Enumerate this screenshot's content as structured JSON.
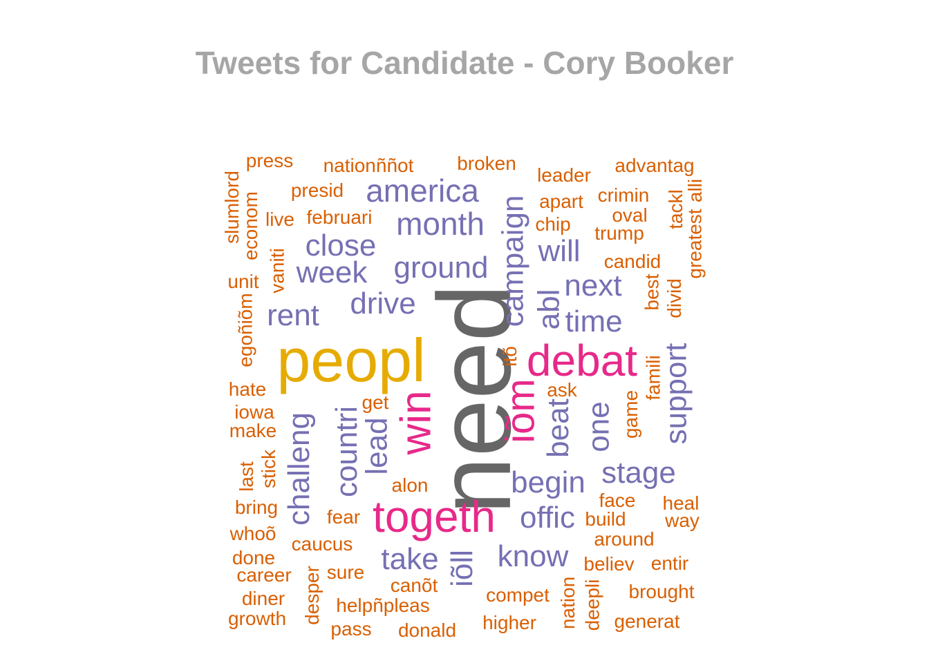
{
  "title": "Tweets for Candidate - Cory Booker",
  "colors": {
    "title": "#a6a6a6",
    "tier1": "#d95f02",
    "tier2": "#7570b3",
    "tier3": "#e7298a",
    "tier4": "#e6ab02",
    "tier5": "#666666"
  },
  "words": [
    {
      "text": "need",
      "color": "#666666"
    },
    {
      "text": "peopl",
      "color": "#e6ab02"
    },
    {
      "text": "togeth",
      "color": "#e7298a"
    },
    {
      "text": "debat",
      "color": "#e7298a"
    },
    {
      "text": "win",
      "color": "#e7298a"
    },
    {
      "text": "iõm",
      "color": "#e7298a"
    },
    {
      "text": "america",
      "color": "#7570b3"
    },
    {
      "text": "month",
      "color": "#7570b3"
    },
    {
      "text": "close",
      "color": "#7570b3"
    },
    {
      "text": "week",
      "color": "#7570b3"
    },
    {
      "text": "ground",
      "color": "#7570b3"
    },
    {
      "text": "drive",
      "color": "#7570b3"
    },
    {
      "text": "rent",
      "color": "#7570b3"
    },
    {
      "text": "campaign",
      "color": "#7570b3"
    },
    {
      "text": "will",
      "color": "#7570b3"
    },
    {
      "text": "next",
      "color": "#7570b3"
    },
    {
      "text": "abl",
      "color": "#7570b3"
    },
    {
      "text": "time",
      "color": "#7570b3"
    },
    {
      "text": "support",
      "color": "#7570b3"
    },
    {
      "text": "one",
      "color": "#7570b3"
    },
    {
      "text": "beat",
      "color": "#7570b3"
    },
    {
      "text": "stage",
      "color": "#7570b3"
    },
    {
      "text": "begin",
      "color": "#7570b3"
    },
    {
      "text": "offic",
      "color": "#7570b3"
    },
    {
      "text": "know",
      "color": "#7570b3"
    },
    {
      "text": "take",
      "color": "#7570b3"
    },
    {
      "text": "iõll",
      "color": "#7570b3"
    },
    {
      "text": "challeng",
      "color": "#7570b3"
    },
    {
      "text": "countri",
      "color": "#7570b3"
    },
    {
      "text": "lead",
      "color": "#7570b3"
    },
    {
      "text": "press",
      "color": "#d95f02"
    },
    {
      "text": "nationññot",
      "color": "#d95f02"
    },
    {
      "text": "broken",
      "color": "#d95f02"
    },
    {
      "text": "leader",
      "color": "#d95f02"
    },
    {
      "text": "advantag",
      "color": "#d95f02"
    },
    {
      "text": "slumlord",
      "color": "#d95f02"
    },
    {
      "text": "econom",
      "color": "#d95f02"
    },
    {
      "text": "presid",
      "color": "#d95f02"
    },
    {
      "text": "live",
      "color": "#d95f02"
    },
    {
      "text": "februari",
      "color": "#d95f02"
    },
    {
      "text": "apart",
      "color": "#d95f02"
    },
    {
      "text": "crimin",
      "color": "#d95f02"
    },
    {
      "text": "oval",
      "color": "#d95f02"
    },
    {
      "text": "chip",
      "color": "#d95f02"
    },
    {
      "text": "trump",
      "color": "#d95f02"
    },
    {
      "text": "tackl",
      "color": "#d95f02"
    },
    {
      "text": "alli",
      "color": "#d95f02"
    },
    {
      "text": "greatest",
      "color": "#d95f02"
    },
    {
      "text": "candid",
      "color": "#d95f02"
    },
    {
      "text": "vaniti",
      "color": "#d95f02"
    },
    {
      "text": "unit",
      "color": "#d95f02"
    },
    {
      "text": "best",
      "color": "#d95f02"
    },
    {
      "text": "divid",
      "color": "#d95f02"
    },
    {
      "text": "egoñiõm",
      "color": "#d95f02"
    },
    {
      "text": "itõ",
      "color": "#d95f02"
    },
    {
      "text": "famili",
      "color": "#d95f02"
    },
    {
      "text": "hate",
      "color": "#d95f02"
    },
    {
      "text": "ask",
      "color": "#d95f02"
    },
    {
      "text": "get",
      "color": "#d95f02"
    },
    {
      "text": "game",
      "color": "#d95f02"
    },
    {
      "text": "iowa",
      "color": "#d95f02"
    },
    {
      "text": "make",
      "color": "#d95f02"
    },
    {
      "text": "last",
      "color": "#d95f02"
    },
    {
      "text": "stick",
      "color": "#d95f02"
    },
    {
      "text": "alon",
      "color": "#d95f02"
    },
    {
      "text": "bring",
      "color": "#d95f02"
    },
    {
      "text": "face",
      "color": "#d95f02"
    },
    {
      "text": "heal",
      "color": "#d95f02"
    },
    {
      "text": "fear",
      "color": "#d95f02"
    },
    {
      "text": "build",
      "color": "#d95f02"
    },
    {
      "text": "way",
      "color": "#d95f02"
    },
    {
      "text": "whoõ",
      "color": "#d95f02"
    },
    {
      "text": "around",
      "color": "#d95f02"
    },
    {
      "text": "caucus",
      "color": "#d95f02"
    },
    {
      "text": "done",
      "color": "#d95f02"
    },
    {
      "text": "believ",
      "color": "#d95f02"
    },
    {
      "text": "entir",
      "color": "#d95f02"
    },
    {
      "text": "career",
      "color": "#d95f02"
    },
    {
      "text": "sure",
      "color": "#d95f02"
    },
    {
      "text": "desper",
      "color": "#d95f02"
    },
    {
      "text": "canõt",
      "color": "#d95f02"
    },
    {
      "text": "brought",
      "color": "#d95f02"
    },
    {
      "text": "diner",
      "color": "#d95f02"
    },
    {
      "text": "compet",
      "color": "#d95f02"
    },
    {
      "text": "nation",
      "color": "#d95f02"
    },
    {
      "text": "deepli",
      "color": "#d95f02"
    },
    {
      "text": "helpñpleas",
      "color": "#d95f02"
    },
    {
      "text": "growth",
      "color": "#d95f02"
    },
    {
      "text": "generat",
      "color": "#d95f02"
    },
    {
      "text": "higher",
      "color": "#d95f02"
    },
    {
      "text": "pass",
      "color": "#d95f02"
    },
    {
      "text": "donald",
      "color": "#d95f02"
    }
  ]
}
